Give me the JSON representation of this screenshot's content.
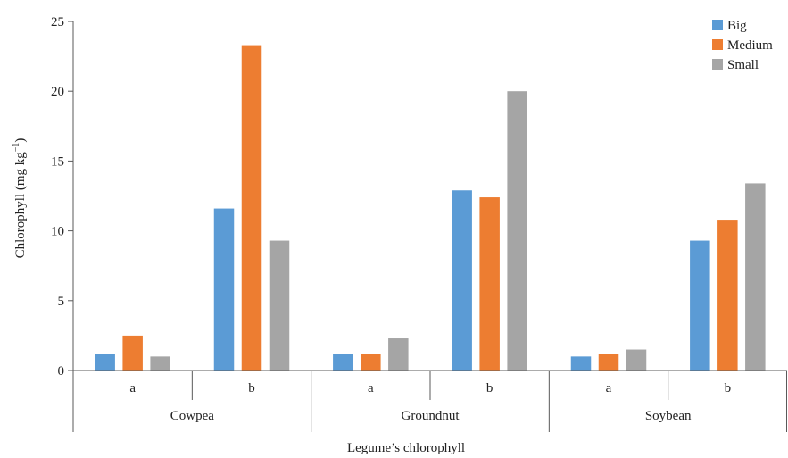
{
  "chart_data": {
    "type": "bar",
    "xlabel": "Legume’s chlorophyll",
    "ylabel": "Chlorophyll (mg kg",
    "ylabel_sup": "−1",
    "ylabel_end": ")",
    "ylim": [
      0,
      25
    ],
    "yticks": [
      0,
      5,
      10,
      15,
      20,
      25
    ],
    "grid": false,
    "legend_position": "top-right",
    "groups": [
      {
        "name": "Cowpea",
        "subcategories": [
          "a",
          "b"
        ]
      },
      {
        "name": "Groundnut",
        "subcategories": [
          "a",
          "b"
        ]
      },
      {
        "name": "Soybean",
        "subcategories": [
          "a",
          "b"
        ]
      }
    ],
    "series": [
      {
        "name": "Big",
        "color": "#5B9BD5",
        "values": [
          1.2,
          11.6,
          1.2,
          12.9,
          1.0,
          9.3
        ]
      },
      {
        "name": "Medium",
        "color": "#ED7D31",
        "values": [
          2.5,
          23.3,
          1.2,
          12.4,
          1.2,
          10.8
        ]
      },
      {
        "name": "Small",
        "color": "#A5A5A5",
        "values": [
          1.0,
          9.3,
          2.3,
          20.0,
          1.5,
          13.4
        ]
      }
    ]
  }
}
